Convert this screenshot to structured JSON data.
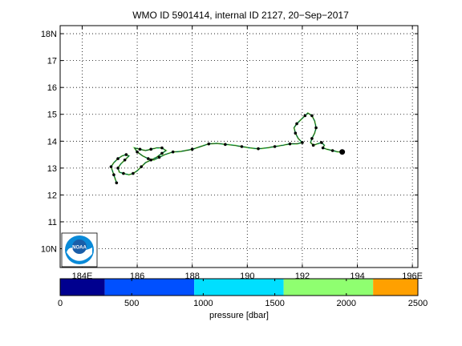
{
  "chart_data": {
    "type": "line",
    "title": "WMO ID 5901414, internal ID 2127, 20−Sep−2017",
    "grid": true,
    "xlim": [
      183.2,
      196.2
    ],
    "ylim": [
      9.3,
      18.3
    ],
    "x_ticks": [
      {
        "value": 184,
        "label": "184E"
      },
      {
        "value": 186,
        "label": "186"
      },
      {
        "value": 188,
        "label": "188"
      },
      {
        "value": 190,
        "label": "190"
      },
      {
        "value": 192,
        "label": "192"
      },
      {
        "value": 194,
        "label": "194"
      },
      {
        "value": 196,
        "label": "196E"
      }
    ],
    "y_ticks": [
      {
        "value": 10,
        "label": "10N"
      },
      {
        "value": 11,
        "label": "11"
      },
      {
        "value": 12,
        "label": "12"
      },
      {
        "value": 13,
        "label": "13"
      },
      {
        "value": 14,
        "label": "14"
      },
      {
        "value": 15,
        "label": "15"
      },
      {
        "value": 16,
        "label": "16"
      },
      {
        "value": 17,
        "label": "17"
      },
      {
        "value": 18,
        "label": "18N"
      }
    ],
    "track": [
      [
        185.25,
        12.45
      ],
      [
        185.2,
        12.6
      ],
      [
        185.15,
        12.75
      ],
      [
        185.1,
        12.9
      ],
      [
        185.05,
        13.05
      ],
      [
        185.15,
        13.2
      ],
      [
        185.3,
        13.35
      ],
      [
        185.45,
        13.45
      ],
      [
        185.6,
        13.5
      ],
      [
        185.7,
        13.45
      ],
      [
        185.55,
        13.3
      ],
      [
        185.4,
        13.15
      ],
      [
        185.3,
        13.0
      ],
      [
        185.35,
        12.85
      ],
      [
        185.5,
        12.8
      ],
      [
        185.7,
        12.75
      ],
      [
        185.85,
        12.8
      ],
      [
        186.0,
        12.9
      ],
      [
        186.15,
        13.05
      ],
      [
        186.3,
        13.2
      ],
      [
        186.5,
        13.3
      ],
      [
        186.7,
        13.4
      ],
      [
        186.9,
        13.55
      ],
      [
        187.05,
        13.65
      ],
      [
        186.9,
        13.75
      ],
      [
        186.7,
        13.75
      ],
      [
        186.5,
        13.7
      ],
      [
        186.3,
        13.65
      ],
      [
        186.1,
        13.7
      ],
      [
        185.9,
        13.75
      ],
      [
        186.0,
        13.6
      ],
      [
        186.2,
        13.45
      ],
      [
        186.4,
        13.35
      ],
      [
        186.6,
        13.3
      ],
      [
        186.8,
        13.4
      ],
      [
        187.0,
        13.5
      ],
      [
        187.3,
        13.6
      ],
      [
        187.6,
        13.62
      ],
      [
        188.0,
        13.7
      ],
      [
        188.3,
        13.8
      ],
      [
        188.6,
        13.9
      ],
      [
        188.9,
        13.92
      ],
      [
        189.2,
        13.88
      ],
      [
        189.5,
        13.85
      ],
      [
        189.8,
        13.8
      ],
      [
        190.1,
        13.75
      ],
      [
        190.4,
        13.72
      ],
      [
        190.7,
        13.75
      ],
      [
        191.0,
        13.8
      ],
      [
        191.3,
        13.85
      ],
      [
        191.55,
        13.9
      ],
      [
        191.8,
        13.9
      ],
      [
        192.0,
        13.95
      ],
      [
        191.85,
        14.1
      ],
      [
        191.75,
        14.3
      ],
      [
        191.7,
        14.5
      ],
      [
        191.8,
        14.65
      ],
      [
        191.95,
        14.8
      ],
      [
        192.1,
        14.95
      ],
      [
        192.2,
        15.05
      ],
      [
        192.35,
        14.95
      ],
      [
        192.45,
        14.75
      ],
      [
        192.5,
        14.5
      ],
      [
        192.45,
        14.3
      ],
      [
        192.35,
        14.1
      ],
      [
        192.3,
        13.95
      ],
      [
        192.4,
        13.85
      ],
      [
        192.55,
        13.9
      ],
      [
        192.7,
        13.95
      ],
      [
        192.8,
        13.85
      ],
      [
        192.75,
        13.75
      ],
      [
        192.9,
        13.7
      ],
      [
        193.1,
        13.65
      ],
      [
        193.3,
        13.6
      ],
      [
        193.45,
        13.6
      ]
    ],
    "colorbar": {
      "label": "pressure [dbar]",
      "range": [
        0,
        2500
      ],
      "ticks": [
        {
          "value": 0,
          "label": "0"
        },
        {
          "value": 500,
          "label": "500"
        },
        {
          "value": 1000,
          "label": "1000"
        },
        {
          "value": 1500,
          "label": "1500"
        },
        {
          "value": 2000,
          "label": "2000"
        },
        {
          "value": 2500,
          "label": "2500"
        }
      ],
      "bands": [
        {
          "from": 0,
          "to": 312,
          "color": "#00008f"
        },
        {
          "from": 312,
          "to": 937,
          "color": "#0050ff"
        },
        {
          "from": 937,
          "to": 1562,
          "color": "#00dfff"
        },
        {
          "from": 1562,
          "to": 2187,
          "color": "#8fff70"
        },
        {
          "from": 2187,
          "to": 2500,
          "color": "#ffa000"
        }
      ]
    },
    "colors": {
      "track_line": "#000000",
      "track_fill": "#8fff70",
      "track_alt": "#00dfff",
      "marker": "#000000"
    },
    "logo": {
      "text": "NOAA",
      "colors": [
        "#1a5ea8",
        "#0a8ad8",
        "#ffffff"
      ]
    }
  }
}
